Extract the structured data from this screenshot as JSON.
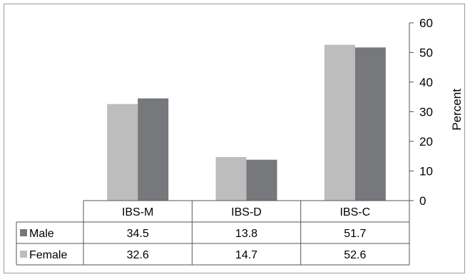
{
  "chart_data": {
    "type": "bar",
    "categories": [
      "IBS-M",
      "IBS-D",
      "IBS-C"
    ],
    "series": [
      {
        "name": "Female",
        "values": [
          32.6,
          14.7,
          52.6
        ],
        "color": "#bdbdbe"
      },
      {
        "name": "Male",
        "values": [
          34.5,
          13.8,
          51.7
        ],
        "color": "#77787b"
      }
    ],
    "table_rows": [
      {
        "name": "Male",
        "values": [
          "34.5",
          "13.8",
          "51.7"
        ],
        "color": "#77787b"
      },
      {
        "name": "Female",
        "values": [
          "32.6",
          "14.7",
          "52.6"
        ],
        "color": "#bdbdbe"
      }
    ],
    "ylabel": "Percent",
    "ylim": [
      0,
      60
    ],
    "yticks": [
      0,
      10,
      20,
      30,
      40,
      50,
      60
    ],
    "y_axis_side": "right",
    "grid": false,
    "legend": "data-table"
  }
}
